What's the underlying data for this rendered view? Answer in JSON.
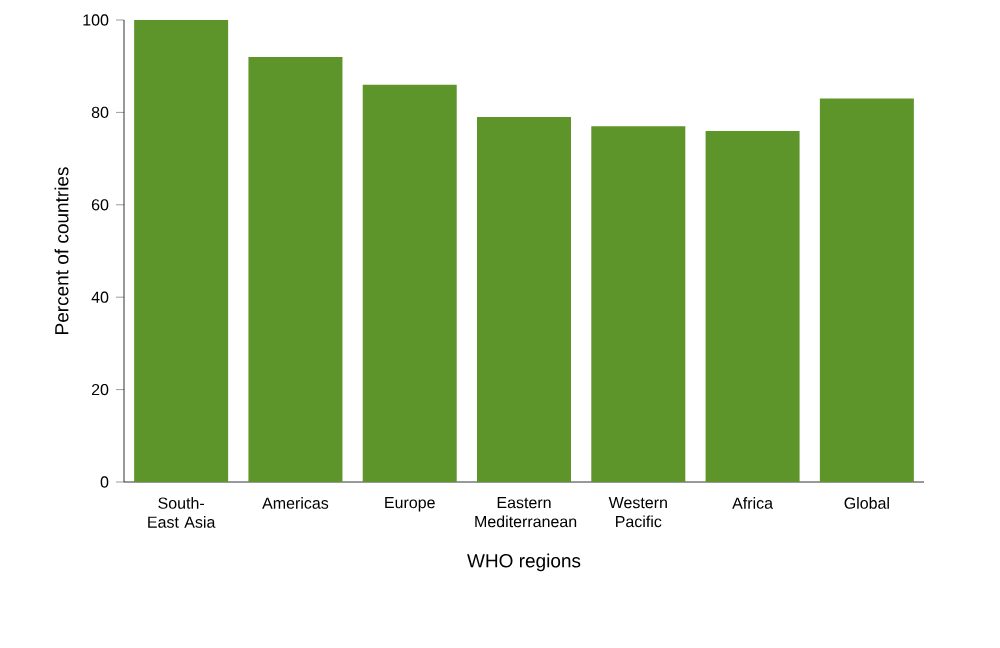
{
  "chart_data": {
    "type": "bar",
    "xlabel": "WHO regions",
    "ylabel": "Percent of countries",
    "categories": [
      "South-East Asia",
      "Americas",
      "Europe",
      "Eastern Mediterranean",
      "Western Pacific",
      "Africa",
      "Global"
    ],
    "values": [
      100,
      92,
      86,
      79,
      77,
      76,
      83
    ],
    "color": "#5e952b",
    "ylim": [
      0,
      100
    ],
    "yticks": [
      0,
      20,
      40,
      60,
      80,
      100
    ]
  }
}
